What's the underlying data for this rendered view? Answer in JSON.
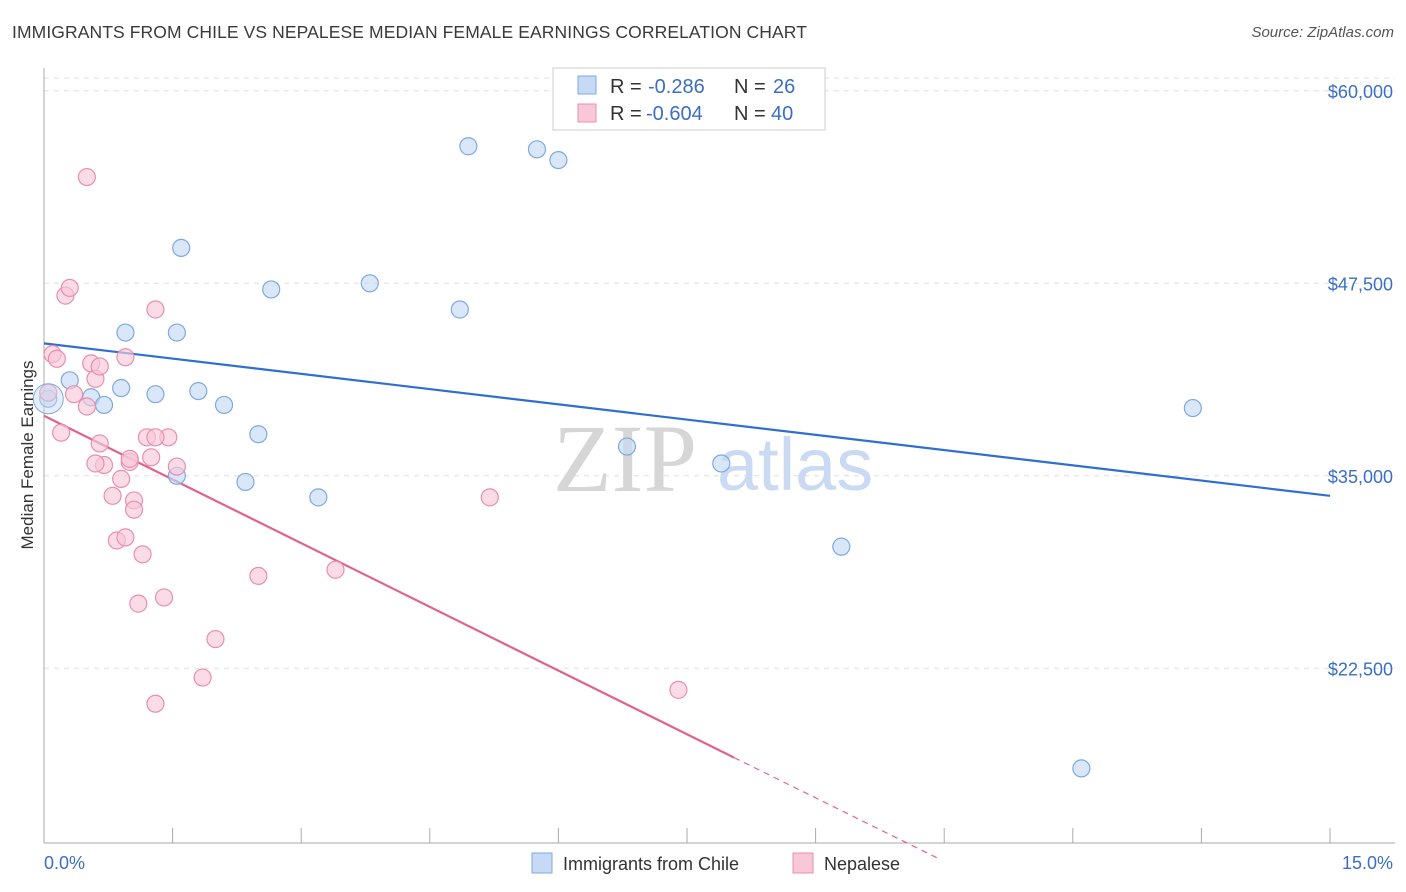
{
  "header": {
    "title": "IMMIGRANTS FROM CHILE VS NEPALESE MEDIAN FEMALE EARNINGS CORRELATION CHART",
    "source": "Source: ZipAtlas.com"
  },
  "watermark": {
    "zip": "ZIP",
    "atlas": "atlas"
  },
  "legend_top": {
    "rows": [
      {
        "r_label": "R =",
        "r_value": "-0.286",
        "n_label": "N =",
        "n_value": "26"
      },
      {
        "r_label": "R =",
        "r_value": "-0.604",
        "n_label": "N =",
        "n_value": "40"
      }
    ]
  },
  "chart_data": {
    "type": "scatter",
    "title": "IMMIGRANTS FROM CHILE VS NEPALESE MEDIAN FEMALE EARNINGS CORRELATION CHART",
    "xlabel": "",
    "ylabel": "Median Female Earnings",
    "xlim": [
      0,
      15
    ],
    "ylim": [
      12000,
      62000
    ],
    "x_tick_labels": [
      "0.0%",
      "15.0%"
    ],
    "y_ticks": [
      22500,
      35000,
      47500,
      60000
    ],
    "y_tick_labels": [
      "$22,500",
      "$35,000",
      "$47,500",
      "$60,000"
    ],
    "grid": true,
    "series": [
      {
        "name": "Immigrants from Chile",
        "color": "#7ea9e1",
        "fill": "#c6daf5",
        "line_color": "#2f6fd0",
        "points": [
          [
            0.05,
            40000
          ],
          [
            0.3,
            41200
          ],
          [
            0.55,
            40100
          ],
          [
            0.7,
            39600
          ],
          [
            0.95,
            44300
          ],
          [
            0.9,
            40700
          ],
          [
            1.3,
            40300
          ],
          [
            1.55,
            44300
          ],
          [
            1.6,
            49800
          ],
          [
            1.8,
            40500
          ],
          [
            2.1,
            39600
          ],
          [
            2.5,
            37700
          ],
          [
            2.65,
            47100
          ],
          [
            1.55,
            35000
          ],
          [
            2.35,
            34600
          ],
          [
            3.2,
            33600
          ],
          [
            3.8,
            47500
          ],
          [
            4.85,
            45800
          ],
          [
            4.95,
            56400
          ],
          [
            5.75,
            56200
          ],
          [
            6.0,
            55500
          ],
          [
            6.8,
            36900
          ],
          [
            7.9,
            35800
          ],
          [
            9.3,
            30400
          ],
          [
            13.4,
            39400
          ],
          [
            12.1,
            16000
          ]
        ],
        "trend": {
          "x": [
            0,
            15
          ],
          "y": [
            43600,
            33700
          ]
        }
      },
      {
        "name": "Nepalese",
        "color": "#e98fae",
        "fill": "#f8c8d8",
        "line_color": "#e0638f",
        "points": [
          [
            0.05,
            40400
          ],
          [
            0.1,
            42900
          ],
          [
            0.15,
            42600
          ],
          [
            0.25,
            46700
          ],
          [
            0.3,
            47200
          ],
          [
            0.35,
            40300
          ],
          [
            0.5,
            39500
          ],
          [
            0.55,
            42300
          ],
          [
            0.6,
            41300
          ],
          [
            0.65,
            37100
          ],
          [
            0.7,
            35700
          ],
          [
            0.8,
            33700
          ],
          [
            0.65,
            42100
          ],
          [
            0.2,
            37800
          ],
          [
            0.9,
            34800
          ],
          [
            0.85,
            30800
          ],
          [
            1.0,
            35900
          ],
          [
            1.05,
            33400
          ],
          [
            1.05,
            32800
          ],
          [
            0.95,
            31000
          ],
          [
            1.2,
            37500
          ],
          [
            1.45,
            37500
          ],
          [
            1.3,
            37500
          ],
          [
            1.25,
            36200
          ],
          [
            1.15,
            29900
          ],
          [
            1.1,
            26700
          ],
          [
            1.4,
            27100
          ],
          [
            1.3,
            45800
          ],
          [
            1.55,
            35600
          ],
          [
            1.3,
            20200
          ],
          [
            2.0,
            24400
          ],
          [
            1.85,
            21900
          ],
          [
            2.5,
            28500
          ],
          [
            3.4,
            28900
          ],
          [
            5.2,
            33600
          ],
          [
            7.4,
            21100
          ],
          [
            0.95,
            42700
          ],
          [
            0.6,
            35800
          ],
          [
            0.5,
            54400
          ],
          [
            1.0,
            36100
          ]
        ],
        "trend": {
          "x": [
            0,
            8.05
          ],
          "y": [
            38900,
            16700
          ]
        },
        "trend_dashed": {
          "x": [
            8.05,
            10.45
          ],
          "y": [
            16700,
            10100
          ]
        }
      }
    ]
  },
  "legend_bottom": {
    "items": [
      {
        "label": "Immigrants from Chile"
      },
      {
        "label": "Nepalese"
      }
    ]
  }
}
